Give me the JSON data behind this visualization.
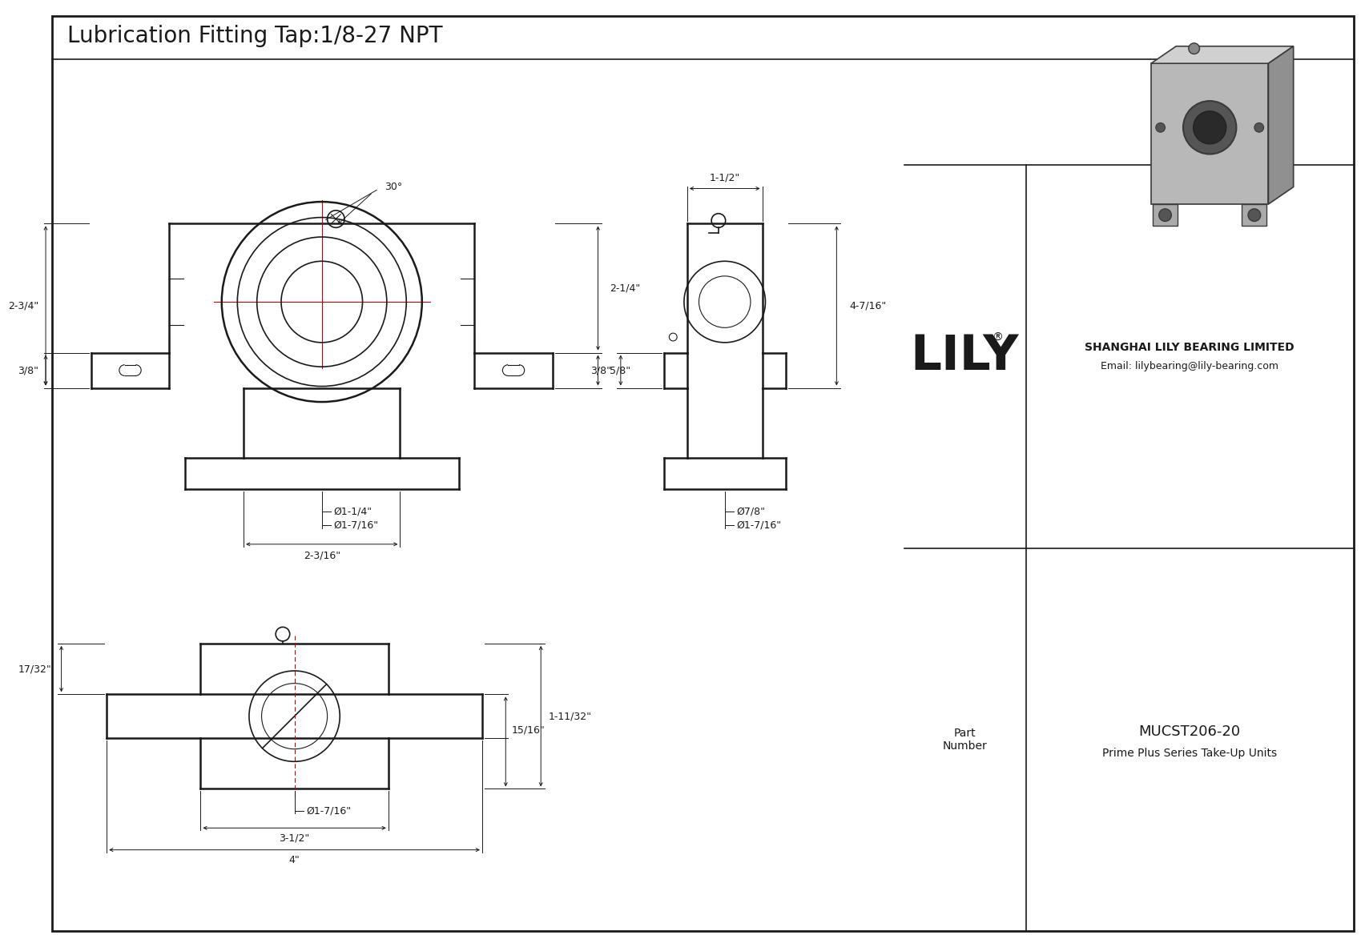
{
  "title": "Lubrication Fitting Tap:1/8-27 NPT",
  "bg_color": "#ffffff",
  "line_color": "#1a1a1a",
  "red_color": "#cc0000",
  "company_name": "SHANGHAI LILY BEARING LIMITED",
  "company_email": "Email: lilybearing@lily-bearing.com",
  "part_label": "Part\nNumber",
  "part_number": "MUCST206-20",
  "part_series": "Prime Plus Series Take-Up Units",
  "lily_text": "LILY",
  "dim_angle": "30°",
  "dim_top_width": "1-1/2\"",
  "dim_height_right": "4-7/16\"",
  "dim_3_8_right": "3/8\"",
  "dim_7_8": "Ø7/8\"",
  "dim_1_7_16_right": "Ø1-7/16\"",
  "dim_2_1_4": "2-1/4\"",
  "dim_2_3_4": "2-3/4\"",
  "dim_3_8_left": "3/8\"",
  "dim_5_8": "5/8\"",
  "dim_1_1_4": "Ø1-1/4\"",
  "dim_1_7_16_bottom": "Ø1-7/16\"",
  "dim_2_3_16": "2-3/16\"",
  "dim_17_32": "17/32\"",
  "dim_15_16": "15/16\"",
  "dim_1_11_32": "1-11/32\"",
  "dim_1_7_16_front": "Ø1-7/16\"",
  "dim_3_1_2": "3-1/2\"",
  "dim_4": "4\""
}
